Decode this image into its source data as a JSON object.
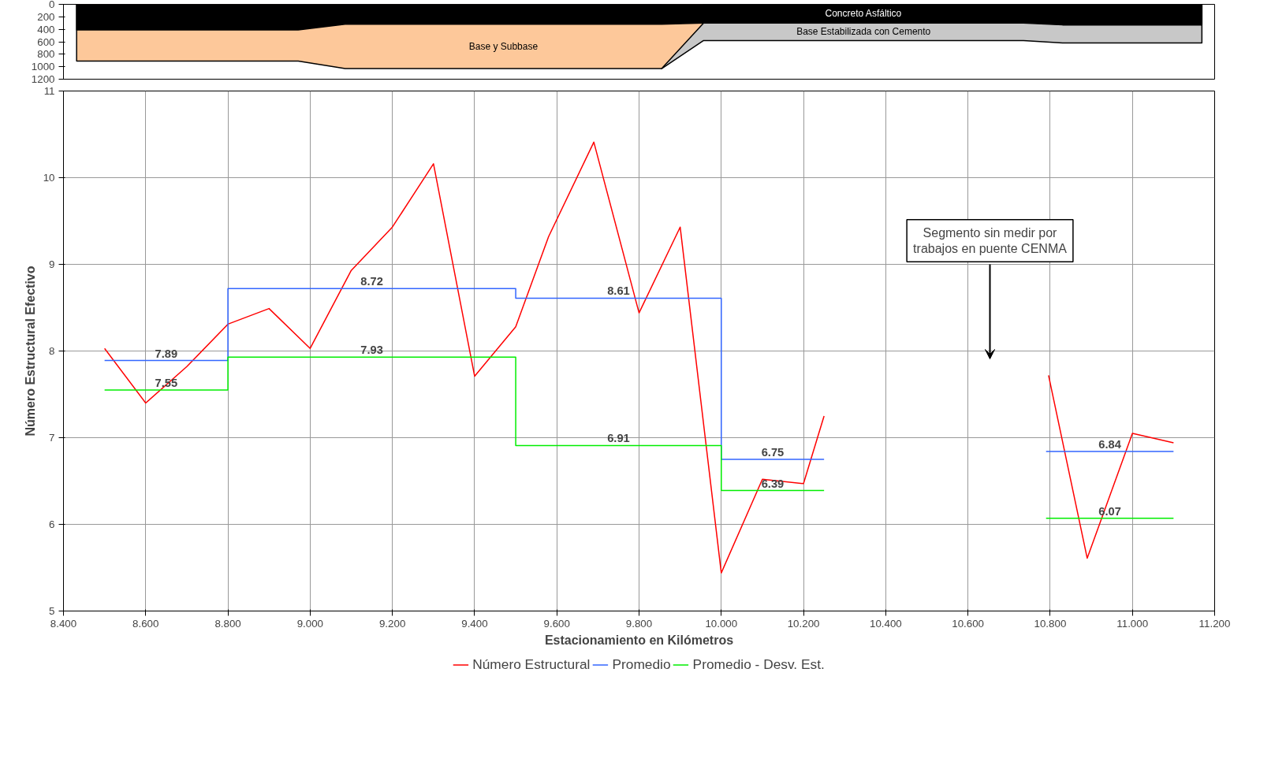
{
  "chart_data": [
    {
      "type": "area",
      "ylim": [
        1200,
        0
      ],
      "yticks": [
        0,
        200,
        400,
        600,
        800,
        1000,
        1200
      ],
      "xlim": [
        8.4,
        11.2
      ],
      "tick_labels": "y",
      "grid": false,
      "x": [
        8.432,
        8.971,
        9.085,
        9.855,
        9.957,
        10.735,
        10.83,
        11.169
      ],
      "series": [
        {
          "name": "Base Estabilizada con Cemento",
          "color": "#c8c8c8",
          "x": [
            9.855,
            9.957,
            10.735,
            10.83,
            11.169
          ],
          "values": [
            1030,
            580,
            580,
            620,
            620
          ]
        },
        {
          "name": "Base y Subbase",
          "color": "#fdc89a",
          "x": [
            8.432,
            8.971,
            9.085,
            9.855,
            9.957
          ],
          "values": [
            910,
            910,
            1030,
            1030,
            300
          ]
        },
        {
          "name": "Concreto Asfáltico",
          "color": "#000000",
          "values": [
            410,
            410,
            320,
            320,
            300,
            300,
            330,
            330
          ]
        }
      ]
    },
    {
      "type": "line",
      "xlabel": "Estacionamiento en Kilómetros",
      "ylabel": "Número Estructural Efectivo",
      "xlim": [
        8.4,
        11.2
      ],
      "xticks": [
        {
          "value": 8.4,
          "label": "8.400"
        },
        {
          "value": 8.6,
          "label": "8.600"
        },
        {
          "value": 8.8,
          "label": "8.800"
        },
        {
          "value": 9.0,
          "label": "9.000"
        },
        {
          "value": 9.2,
          "label": "9.200"
        },
        {
          "value": 9.4,
          "label": "9.400"
        },
        {
          "value": 9.6,
          "label": "9.600"
        },
        {
          "value": 9.8,
          "label": "9.800"
        },
        {
          "value": 10.0,
          "label": "10.000"
        },
        {
          "value": 10.2,
          "label": "10.200"
        },
        {
          "value": 10.4,
          "label": "10.400"
        },
        {
          "value": 10.6,
          "label": "10.600"
        },
        {
          "value": 10.8,
          "label": "10.800"
        },
        {
          "value": 11.0,
          "label": "11.000"
        },
        {
          "value": 11.2,
          "label": "11.200"
        }
      ],
      "ylim": [
        5,
        11
      ],
      "yticks": [
        5,
        6,
        7,
        8,
        9,
        10,
        11
      ],
      "grid": true,
      "legend": "bottom",
      "series": [
        {
          "name": "Número Estructural",
          "color": "#ff0000",
          "x": [
            8.5,
            8.6,
            8.7,
            8.8,
            8.9,
            9.0,
            9.1,
            9.2,
            9.3,
            9.4,
            9.5,
            9.58,
            9.69,
            9.8,
            9.9,
            10.0,
            10.1,
            10.2,
            10.25,
            10.5,
            10.796,
            10.89,
            11.0,
            11.1
          ],
          "values": [
            8.03,
            7.4,
            7.82,
            8.31,
            8.49,
            8.03,
            8.93,
            9.43,
            10.16,
            7.71,
            8.28,
            9.32,
            10.41,
            8.44,
            9.43,
            5.44,
            6.52,
            6.47,
            7.25,
            null,
            7.72,
            5.61,
            7.05,
            6.94
          ]
        },
        {
          "name": "Promedio",
          "color": "#3366ff",
          "x": [
            8.5,
            8.65,
            8.8,
            8.8,
            9.15,
            9.5,
            9.5,
            9.75,
            10.0,
            10.0,
            10.125,
            10.25,
            10.5,
            10.79,
            10.945,
            11.1
          ],
          "values": [
            7.89,
            7.89,
            7.89,
            8.72,
            8.72,
            8.72,
            8.61,
            8.61,
            8.61,
            6.75,
            6.75,
            6.75,
            null,
            6.84,
            6.84,
            6.84
          ],
          "value_labels": [
            null,
            "7.89",
            null,
            null,
            "8.72",
            null,
            null,
            "8.61",
            null,
            null,
            "6.75",
            null,
            null,
            null,
            "6.84",
            null
          ]
        },
        {
          "name": "Promedio - Desv. Est.",
          "color": "#00ee00",
          "x": [
            8.5,
            8.65,
            8.8,
            8.8,
            9.15,
            9.5,
            9.5,
            9.75,
            10.0,
            10.0,
            10.125,
            10.25,
            10.5,
            10.79,
            10.945,
            11.1
          ],
          "values": [
            7.55,
            7.55,
            7.55,
            7.93,
            7.93,
            7.93,
            6.91,
            6.91,
            6.91,
            6.39,
            6.39,
            6.39,
            null,
            6.07,
            6.07,
            6.07
          ],
          "value_labels": [
            null,
            "7.55",
            null,
            null,
            "7.93",
            null,
            null,
            "6.91",
            null,
            null,
            "6.39",
            null,
            null,
            null,
            "6.07",
            null
          ]
        }
      ],
      "annotations": [
        "Segmento sin medir por\ntrabajos en puente CENMA"
      ]
    }
  ]
}
